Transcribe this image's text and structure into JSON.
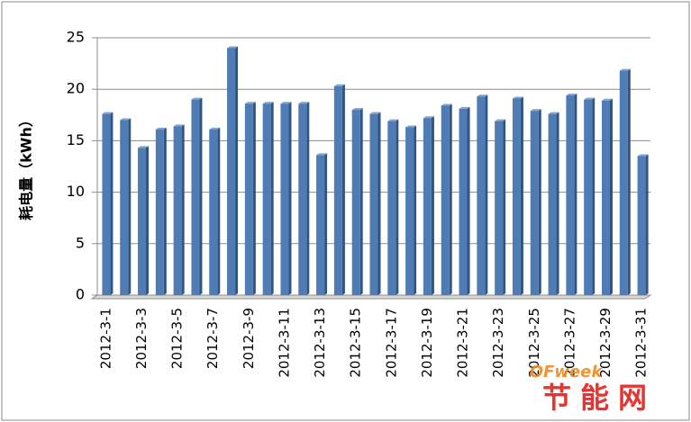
{
  "chart_data": {
    "type": "bar",
    "y_label": "耗电量（kWh）",
    "categories": [
      "2012-3-1",
      null,
      "2012-3-3",
      null,
      "2012-3-5",
      null,
      "2012-3-7",
      null,
      "2012-3-9",
      null,
      "2012-3-11",
      null,
      "2012-3-13",
      null,
      "2012-3-15",
      null,
      "2012-3-17",
      null,
      "2012-3-19",
      null,
      "2012-3-21",
      null,
      "2012-3-23",
      null,
      "2012-3-25",
      null,
      "2012-3-27",
      null,
      "2012-3-29",
      null,
      "2012-3-31"
    ],
    "values": [
      17.6,
      17.0,
      14.3,
      16.1,
      16.4,
      19.0,
      16.1,
      24.0,
      18.6,
      18.6,
      18.6,
      18.6,
      13.6,
      20.3,
      18.0,
      17.6,
      16.9,
      16.3,
      17.2,
      18.4,
      18.1,
      19.3,
      16.9,
      19.1,
      17.9,
      17.6,
      19.4,
      19.0,
      18.9,
      21.8,
      13.5
    ],
    "color": "#4f7cb4",
    "ylim": [
      0,
      25
    ],
    "yticks": [
      0,
      5,
      10,
      15,
      20,
      25
    ],
    "grid": true,
    "watermark": {
      "brand": "OFweek",
      "name": "节能网"
    }
  }
}
